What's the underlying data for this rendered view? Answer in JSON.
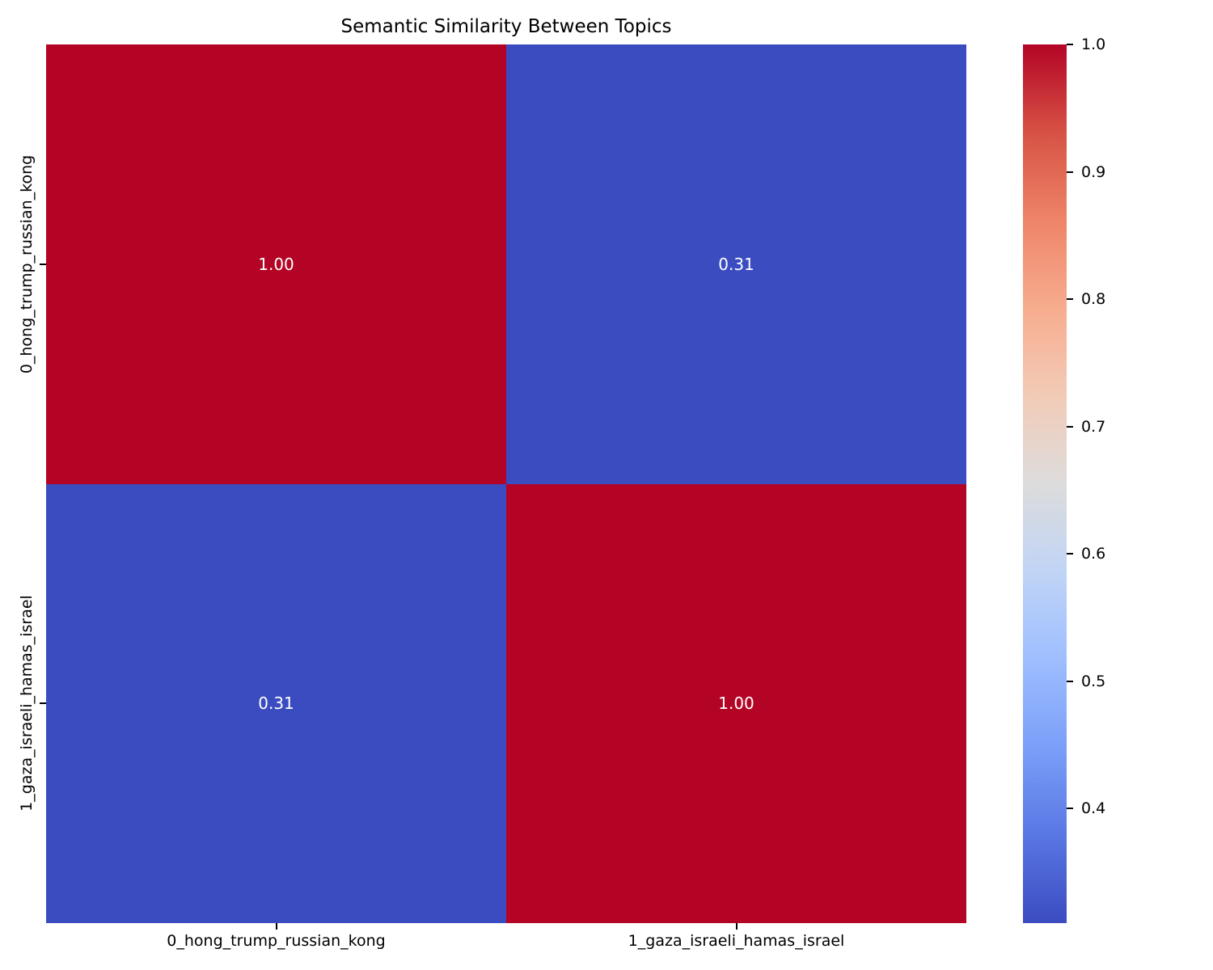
{
  "figure": {
    "background_color": "#ffffff",
    "text_color": "#000000"
  },
  "chart_data": {
    "type": "heatmap",
    "title": "Semantic Similarity Between Topics",
    "x_tick_labels": [
      "0_hong_trump_russian_kong",
      "1_gaza_israeli_hamas_israel"
    ],
    "y_tick_labels": [
      "0_hong_trump_russian_kong",
      "1_gaza_israeli_hamas_israel"
    ],
    "values": [
      [
        1.0,
        0.31
      ],
      [
        0.31,
        1.0
      ]
    ],
    "value_labels": [
      [
        "1.00",
        "0.31"
      ],
      [
        "0.31",
        "1.00"
      ]
    ],
    "cell_colors": [
      [
        "#b40426",
        "#3b4cc0"
      ],
      [
        "#3b4cc0",
        "#b40426"
      ]
    ],
    "annotation_text_color": "#ffffff",
    "grid": false,
    "legend": "colorbar-right",
    "colormap": {
      "name": "coolwarm",
      "stops": [
        {
          "pos": 0.0,
          "color": "#3b4cc0"
        },
        {
          "pos": 0.1,
          "color": "#5977e3"
        },
        {
          "pos": 0.2,
          "color": "#7b9ff9"
        },
        {
          "pos": 0.3,
          "color": "#9ebeff"
        },
        {
          "pos": 0.4,
          "color": "#c0d4f5"
        },
        {
          "pos": 0.5,
          "color": "#dddcdc"
        },
        {
          "pos": 0.6,
          "color": "#f2cbb7"
        },
        {
          "pos": 0.7,
          "color": "#f7ac8e"
        },
        {
          "pos": 0.8,
          "color": "#ee8468"
        },
        {
          "pos": 0.9,
          "color": "#d65244"
        },
        {
          "pos": 1.0,
          "color": "#b40426"
        }
      ]
    },
    "colorbar": {
      "vmin": 0.31,
      "vmax": 1.0,
      "tick_values": [
        1.0,
        0.9,
        0.8,
        0.7,
        0.6,
        0.5,
        0.4
      ],
      "tick_labels": [
        "1.0",
        "0.9",
        "0.8",
        "0.7",
        "0.6",
        "0.5",
        "0.4"
      ]
    }
  }
}
